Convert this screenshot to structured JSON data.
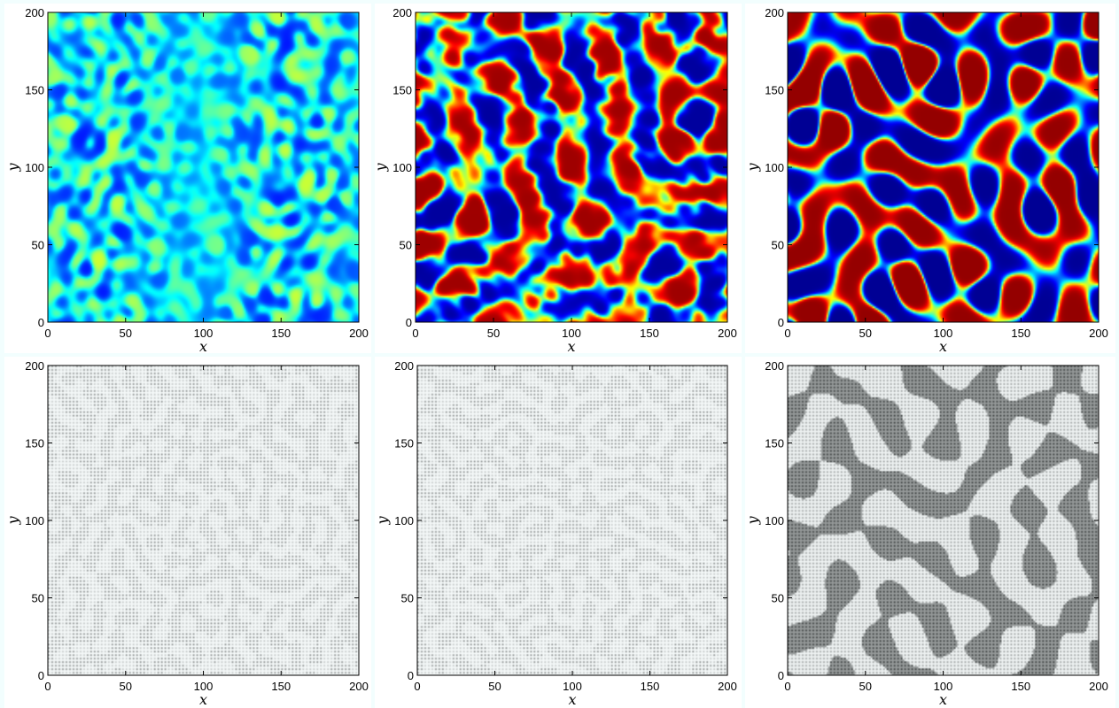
{
  "chart_data": [
    {
      "type": "heatmap",
      "title": "",
      "xlabel": "x",
      "ylabel": "y",
      "xlim": [
        0,
        200
      ],
      "ylim": [
        0,
        200
      ],
      "xticks": [
        "0",
        "50",
        "100",
        "150",
        "200"
      ],
      "yticks": [
        "0",
        "50",
        "100",
        "150",
        "200"
      ],
      "colormap": "jet",
      "pattern": "noisy-spots",
      "intensity": 0.35,
      "row": 1,
      "col": 1
    },
    {
      "type": "heatmap",
      "title": "",
      "xlabel": "x",
      "ylabel": "y",
      "xlim": [
        0,
        200
      ],
      "ylim": [
        0,
        200
      ],
      "xticks": [
        "0",
        "50",
        "100",
        "150",
        "200"
      ],
      "yticks": [
        "0",
        "50",
        "100",
        "150",
        "200"
      ],
      "colormap": "jet",
      "pattern": "labyrinth-spots",
      "intensity": 1.0,
      "row": 1,
      "col": 2
    },
    {
      "type": "heatmap",
      "title": "",
      "xlabel": "x",
      "ylabel": "y",
      "xlim": [
        0,
        200
      ],
      "ylim": [
        0,
        200
      ],
      "xticks": [
        "0",
        "50",
        "100",
        "150",
        "200"
      ],
      "yticks": [
        "0",
        "50",
        "100",
        "150",
        "200"
      ],
      "colormap": "jet",
      "pattern": "labyrinth-stripes",
      "intensity": 1.0,
      "row": 1,
      "col": 3
    },
    {
      "type": "heatmap",
      "title": "",
      "xlabel": "x",
      "ylabel": "y",
      "xlim": [
        0,
        200
      ],
      "ylim": [
        0,
        200
      ],
      "xticks": [
        "0",
        "50",
        "100",
        "150",
        "200"
      ],
      "yticks": [
        "0",
        "50",
        "100",
        "150",
        "200"
      ],
      "colormap": "gray-dots",
      "pattern": "faint-dot-grid",
      "intensity": 0.25,
      "row": 2,
      "col": 1
    },
    {
      "type": "heatmap",
      "title": "",
      "xlabel": "x",
      "ylabel": "y",
      "xlim": [
        0,
        200
      ],
      "ylim": [
        0,
        200
      ],
      "xticks": [
        "0",
        "50",
        "100",
        "150",
        "200"
      ],
      "yticks": [
        "0",
        "50",
        "100",
        "150",
        "200"
      ],
      "colormap": "gray-dots",
      "pattern": "faint-dot-grid",
      "intensity": 0.3,
      "row": 2,
      "col": 2
    },
    {
      "type": "heatmap",
      "title": "",
      "xlabel": "x",
      "ylabel": "y",
      "xlim": [
        0,
        200
      ],
      "ylim": [
        0,
        200
      ],
      "xticks": [
        "0",
        "50",
        "100",
        "150",
        "200"
      ],
      "yticks": [
        "0",
        "50",
        "100",
        "150",
        "200"
      ],
      "colormap": "gray-dots",
      "pattern": "labyrinth-stripes",
      "intensity": 0.8,
      "row": 2,
      "col": 3
    }
  ]
}
